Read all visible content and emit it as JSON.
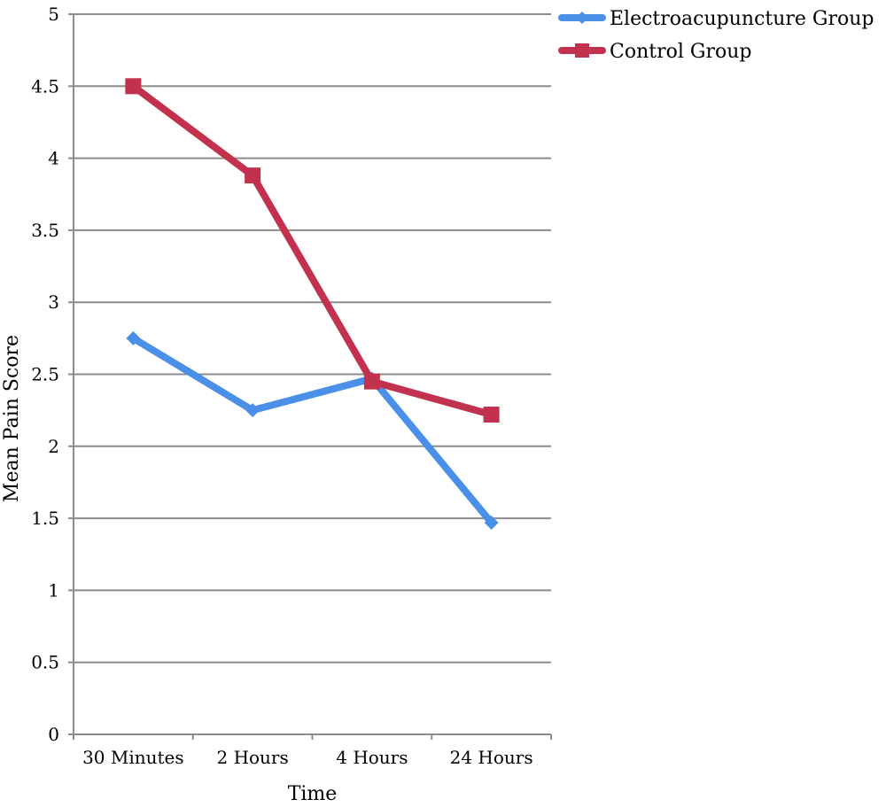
{
  "chart_data": {
    "type": "line",
    "title": "",
    "xlabel": "Time",
    "ylabel": "Mean Pain Score",
    "categories": [
      "30 Minutes",
      "2 Hours",
      "4 Hours",
      "24 Hours"
    ],
    "ylim": [
      0,
      5
    ],
    "yticks": [
      "0",
      "0.5",
      "1",
      "1.5",
      "2",
      "2.5",
      "3",
      "3.5",
      "4",
      "4.5",
      "5"
    ],
    "grid": "horizontal",
    "legend_position": "top-right",
    "series": [
      {
        "name": "Electroacupuncture Group",
        "values": [
          2.75,
          2.25,
          2.47,
          1.47
        ],
        "color": "#4a90e8",
        "marker": "diamond"
      },
      {
        "name": "Control Group",
        "values": [
          4.5,
          3.88,
          2.45,
          2.22
        ],
        "color": "#c2314d",
        "marker": "square"
      }
    ]
  }
}
